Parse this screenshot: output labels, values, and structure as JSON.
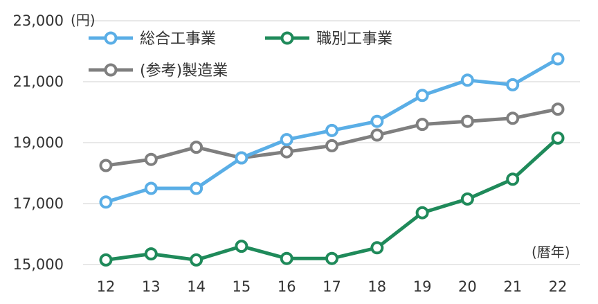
{
  "chart_data": {
    "type": "line",
    "categories": [
      "12",
      "13",
      "14",
      "15",
      "16",
      "17",
      "18",
      "19",
      "20",
      "21",
      "22"
    ],
    "y_unit": "(円)",
    "x_unit": "(暦年)",
    "ylim": [
      15000,
      23000
    ],
    "yticks": [
      "15,000",
      "17,000",
      "19,000",
      "21,000",
      "23,000"
    ],
    "ytick_values": [
      15000,
      17000,
      19000,
      21000,
      23000
    ],
    "grid": true,
    "legend_position": "top-left",
    "series": [
      {
        "name": "総合工事業",
        "color": "#5aaee6",
        "values": [
          17050,
          17500,
          17500,
          18500,
          19100,
          19400,
          19700,
          20550,
          21050,
          20900,
          21750
        ]
      },
      {
        "name": "職別工事業",
        "color": "#1f8a5a",
        "values": [
          15150,
          15350,
          15150,
          15600,
          15200,
          15200,
          15550,
          16700,
          17150,
          17800,
          19150
        ]
      },
      {
        "name": "(参考)製造業",
        "color": "#7f7f7f",
        "values": [
          18250,
          18450,
          18850,
          18500,
          18700,
          18900,
          19250,
          19600,
          19700,
          19800,
          20100
        ]
      }
    ]
  }
}
